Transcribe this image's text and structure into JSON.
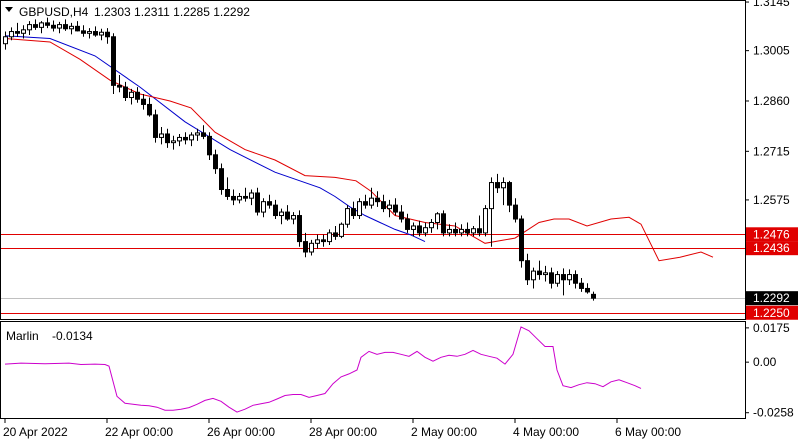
{
  "chart_data": [
    {
      "type": "candlestick",
      "title": "GBPUSD,H4",
      "ohlc_label": "1.2303 1.2311 1.2285 1.2292",
      "ylim": [
        1.2232,
        1.3148
      ],
      "y_ticks": [
        "1.3145",
        "1.3005",
        "1.2860",
        "1.2715",
        "1.2575"
      ],
      "x_ticks": [
        {
          "label": "20 Apr 2022",
          "index": 0
        },
        {
          "label": "22 Apr 00:00",
          "index": 17
        },
        {
          "label": "26 Apr 00:00",
          "index": 34
        },
        {
          "label": "28 Apr 00:00",
          "index": 51
        },
        {
          "label": "2 May 00:00",
          "index": 68
        },
        {
          "label": "4 May 00:00",
          "index": 85
        },
        {
          "label": "6 May 00:00",
          "index": 102
        }
      ],
      "price_lines": [
        {
          "value": 1.2476,
          "label": "1.2476",
          "color": "#e00000"
        },
        {
          "value": 1.2436,
          "label": "1.2436",
          "color": "#e00000"
        },
        {
          "value": 1.225,
          "label": "1.2250",
          "color": "#e00000"
        }
      ],
      "current_price": {
        "value": 1.2292,
        "label": "1.2292"
      },
      "candles": [
        [
          1.3025,
          1.306,
          1.3008,
          1.3045
        ],
        [
          1.3045,
          1.3072,
          1.3035,
          1.306
        ],
        [
          1.306,
          1.3085,
          1.3045,
          1.3055
        ],
        [
          1.3055,
          1.3078,
          1.304,
          1.3065
        ],
        [
          1.3065,
          1.309,
          1.305,
          1.308
        ],
        [
          1.308,
          1.3095,
          1.3065,
          1.3072
        ],
        [
          1.3072,
          1.309,
          1.3055,
          1.3085
        ],
        [
          1.3085,
          1.31,
          1.307,
          1.3078
        ],
        [
          1.3078,
          1.3092,
          1.306,
          1.307
        ],
        [
          1.307,
          1.3088,
          1.3055,
          1.308
        ],
        [
          1.308,
          1.3095,
          1.3062,
          1.3068
        ],
        [
          1.3068,
          1.3085,
          1.3052,
          1.3075
        ],
        [
          1.3075,
          1.309,
          1.306,
          1.3062
        ],
        [
          1.3062,
          1.3078,
          1.3045,
          1.3055
        ],
        [
          1.3055,
          1.307,
          1.304,
          1.306
        ],
        [
          1.306,
          1.3075,
          1.3045,
          1.305
        ],
        [
          1.305,
          1.3068,
          1.3035,
          1.3058
        ],
        [
          1.3058,
          1.307,
          1.3025,
          1.3045
        ],
        [
          1.3045,
          1.3055,
          1.288,
          1.2905
        ],
        [
          1.2905,
          1.2935,
          1.2885,
          1.29
        ],
        [
          1.29,
          1.2915,
          1.286,
          1.287
        ],
        [
          1.287,
          1.2895,
          1.285,
          1.2885
        ],
        [
          1.2885,
          1.29,
          1.2855,
          1.2865
        ],
        [
          1.2865,
          1.288,
          1.2835,
          1.285
        ],
        [
          1.285,
          1.287,
          1.2815,
          1.282
        ],
        [
          1.282,
          1.2835,
          1.274,
          1.2755
        ],
        [
          1.2755,
          1.2785,
          1.2735,
          1.2765
        ],
        [
          1.2765,
          1.278,
          1.2725,
          1.274
        ],
        [
          1.274,
          1.276,
          1.272,
          1.2745
        ],
        [
          1.2745,
          1.2765,
          1.273,
          1.2755
        ],
        [
          1.2755,
          1.277,
          1.2735,
          1.2748
        ],
        [
          1.2748,
          1.277,
          1.273,
          1.2762
        ],
        [
          1.2762,
          1.278,
          1.2745,
          1.2768
        ],
        [
          1.2768,
          1.279,
          1.275,
          1.2758
        ],
        [
          1.2758,
          1.277,
          1.269,
          1.2705
        ],
        [
          1.2705,
          1.272,
          1.265,
          1.2665
        ],
        [
          1.2665,
          1.268,
          1.259,
          1.2605
        ],
        [
          1.2605,
          1.264,
          1.2575,
          1.2585
        ],
        [
          1.2585,
          1.2605,
          1.256,
          1.2575
        ],
        [
          1.2575,
          1.2595,
          1.2565,
          1.2585
        ],
        [
          1.2585,
          1.261,
          1.257,
          1.258
        ],
        [
          1.258,
          1.2605,
          1.256,
          1.2595
        ],
        [
          1.2595,
          1.261,
          1.253,
          1.254
        ],
        [
          1.254,
          1.258,
          1.2525,
          1.257
        ],
        [
          1.257,
          1.259,
          1.255,
          1.256
        ],
        [
          1.256,
          1.2575,
          1.252,
          1.253
        ],
        [
          1.253,
          1.255,
          1.2505,
          1.254
        ],
        [
          1.254,
          1.256,
          1.2515,
          1.252
        ],
        [
          1.252,
          1.254,
          1.2505,
          1.253
        ],
        [
          1.253,
          1.2545,
          1.244,
          1.2455
        ],
        [
          1.2455,
          1.248,
          1.241,
          1.2425
        ],
        [
          1.2425,
          1.246,
          1.2415,
          1.245
        ],
        [
          1.245,
          1.2475,
          1.2435,
          1.246
        ],
        [
          1.246,
          1.2475,
          1.244,
          1.2455
        ],
        [
          1.2455,
          1.249,
          1.2445,
          1.248
        ],
        [
          1.248,
          1.25,
          1.246,
          1.247
        ],
        [
          1.247,
          1.251,
          1.2465,
          1.2505
        ],
        [
          1.2505,
          1.256,
          1.2495,
          1.255
        ],
        [
          1.255,
          1.257,
          1.252,
          1.253
        ],
        [
          1.253,
          1.258,
          1.252,
          1.257
        ],
        [
          1.257,
          1.259,
          1.255,
          1.256
        ],
        [
          1.256,
          1.261,
          1.255,
          1.258
        ],
        [
          1.258,
          1.26,
          1.2555,
          1.257
        ],
        [
          1.257,
          1.259,
          1.254,
          1.255
        ],
        [
          1.255,
          1.2575,
          1.2525,
          1.256
        ],
        [
          1.256,
          1.258,
          1.253,
          1.254
        ],
        [
          1.254,
          1.256,
          1.251,
          1.252
        ],
        [
          1.252,
          1.2535,
          1.248,
          1.249
        ],
        [
          1.249,
          1.251,
          1.247,
          1.25
        ],
        [
          1.25,
          1.2515,
          1.247,
          1.248
        ],
        [
          1.248,
          1.251,
          1.247,
          1.2495
        ],
        [
          1.2495,
          1.252,
          1.248,
          1.251
        ],
        [
          1.251,
          1.254,
          1.249,
          1.2535
        ],
        [
          1.2535,
          1.2545,
          1.247,
          1.248
        ],
        [
          1.248,
          1.2505,
          1.247,
          1.249
        ],
        [
          1.249,
          1.251,
          1.247,
          1.248
        ],
        [
          1.248,
          1.2505,
          1.247,
          1.249
        ],
        [
          1.249,
          1.251,
          1.247,
          1.248
        ],
        [
          1.248,
          1.25,
          1.247,
          1.2492
        ],
        [
          1.2492,
          1.253,
          1.247,
          1.248
        ],
        [
          1.248,
          1.256,
          1.247,
          1.255
        ],
        [
          1.255,
          1.264,
          1.244,
          1.2625
        ],
        [
          1.2625,
          1.265,
          1.2595,
          1.261
        ],
        [
          1.261,
          1.264,
          1.256,
          1.2625
        ],
        [
          1.2625,
          1.263,
          1.254,
          1.256
        ],
        [
          1.256,
          1.258,
          1.251,
          1.252
        ],
        [
          1.252,
          1.253,
          1.238,
          1.24
        ],
        [
          1.24,
          1.242,
          1.233,
          1.2345
        ],
        [
          1.2345,
          1.238,
          1.232,
          1.237
        ],
        [
          1.237,
          1.24,
          1.2345,
          1.236
        ],
        [
          1.236,
          1.2385,
          1.234,
          1.2365
        ],
        [
          1.2365,
          1.238,
          1.232,
          1.2335
        ],
        [
          1.2335,
          1.237,
          1.2325,
          1.236
        ],
        [
          1.236,
          1.2378,
          1.23,
          1.2345
        ],
        [
          1.2345,
          1.2375,
          1.233,
          1.236
        ],
        [
          1.236,
          1.2372,
          1.232,
          1.2335
        ],
        [
          1.2335,
          1.235,
          1.231,
          1.232
        ],
        [
          1.232,
          1.2335,
          1.2305,
          1.231
        ],
        [
          1.2303,
          1.2311,
          1.2285,
          1.2292
        ]
      ],
      "ma_slow": [
        [
          0,
          1.3048
        ],
        [
          15,
          1.304
        ],
        [
          30,
          1.299
        ],
        [
          45,
          1.29
        ],
        [
          60,
          1.28
        ],
        [
          75,
          1.272
        ],
        [
          90,
          1.2655
        ],
        [
          105,
          1.261
        ],
        [
          110,
          1.2585
        ],
        [
          115,
          1.2555
        ],
        [
          120,
          1.253
        ],
        [
          125,
          1.251
        ],
        [
          130,
          1.249
        ],
        [
          135,
          1.2475
        ],
        [
          140,
          1.2455
        ]
      ],
      "ma_fast": [
        [
          0,
          1.304
        ],
        [
          15,
          1.303
        ],
        [
          25,
          1.298
        ],
        [
          35,
          1.292
        ],
        [
          45,
          1.288
        ],
        [
          55,
          1.286
        ],
        [
          62,
          1.284
        ],
        [
          70,
          1.277
        ],
        [
          80,
          1.272
        ],
        [
          90,
          1.269
        ],
        [
          100,
          1.2645
        ],
        [
          110,
          1.264
        ],
        [
          117,
          1.263
        ],
        [
          122,
          1.26
        ],
        [
          130,
          1.253
        ],
        [
          140,
          1.251
        ],
        [
          150,
          1.25
        ],
        [
          160,
          1.245
        ],
        [
          170,
          1.2465
        ],
        [
          178,
          1.251
        ],
        [
          183,
          1.252
        ],
        [
          188,
          1.252
        ],
        [
          194,
          1.25
        ],
        [
          202,
          1.252
        ],
        [
          208,
          1.2525
        ],
        [
          212,
          1.2505
        ],
        [
          218,
          1.24
        ],
        [
          225,
          1.241
        ],
        [
          232,
          1.2425
        ],
        [
          236,
          1.241
        ]
      ]
    },
    {
      "type": "line",
      "indicator": "Marlin",
      "value_label": "-0.0134",
      "ylim": [
        -0.0285,
        0.0205
      ],
      "y_ticks": [
        "0.0175",
        "0.00",
        "-0.0258"
      ],
      "series": [
        {
          "color": "#cc00cc",
          "points": [
            [
              0,
              -0.001
            ],
            [
              8,
              -0.0005
            ],
            [
              20,
              -0.0008
            ],
            [
              32,
              -0.0005
            ],
            [
              38,
              -0.0012
            ],
            [
              45,
              -0.001
            ],
            [
              50,
              -0.0012
            ],
            [
              52,
              -0.002
            ],
            [
              56,
              -0.0175
            ],
            [
              60,
              -0.021
            ],
            [
              64,
              -0.0215
            ],
            [
              68,
              -0.022
            ],
            [
              72,
              -0.0222
            ],
            [
              76,
              -0.023
            ],
            [
              80,
              -0.0245
            ],
            [
              84,
              -0.0245
            ],
            [
              88,
              -0.024
            ],
            [
              92,
              -0.0232
            ],
            [
              96,
              -0.0215
            ],
            [
              100,
              -0.0195
            ],
            [
              104,
              -0.0185
            ],
            [
              108,
              -0.02
            ],
            [
              112,
              -0.023
            ],
            [
              116,
              -0.0255
            ],
            [
              120,
              -0.024
            ],
            [
              124,
              -0.022
            ],
            [
              128,
              -0.0212
            ],
            [
              132,
              -0.0205
            ],
            [
              136,
              -0.0188
            ],
            [
              140,
              -0.017
            ],
            [
              144,
              -0.0165
            ],
            [
              148,
              -0.0165
            ],
            [
              152,
              -0.018
            ],
            [
              156,
              -0.017
            ],
            [
              160,
              -0.016
            ],
            [
              164,
              -0.011
            ],
            [
              168,
              -0.0075
            ],
            [
              172,
              -0.006
            ],
            [
              176,
              -0.004
            ],
            [
              178,
              0.0025
            ],
            [
              182,
              0.0055
            ],
            [
              186,
              0.004
            ],
            [
              190,
              0.005
            ],
            [
              194,
              0.005
            ],
            [
              198,
              0.004
            ],
            [
              202,
              0.003
            ],
            [
              206,
              0.0055
            ],
            [
              210,
              0.0025
            ],
            [
              214,
              0.0005
            ],
            [
              218,
              0.0025
            ],
            [
              222,
              0.0035
            ],
            [
              226,
              0.003
            ],
            [
              230,
              0.004
            ],
            [
              234,
              0.006
            ],
            [
              238,
              0.004
            ],
            [
              242,
              0.003
            ],
            [
              246,
              0.002
            ],
            [
              250,
              -0.001
            ],
            [
              254,
              0.004
            ],
            [
              258,
              0.018
            ],
            [
              262,
              0.016
            ],
            [
              266,
              0.012
            ],
            [
              270,
              0.008
            ],
            [
              274,
              0.008
            ],
            [
              276,
              -0.004
            ],
            [
              279,
              -0.012
            ],
            [
              283,
              -0.013
            ],
            [
              287,
              -0.0115
            ],
            [
              291,
              -0.0105
            ],
            [
              295,
              -0.011
            ],
            [
              299,
              -0.0125
            ],
            [
              303,
              -0.01
            ],
            [
              307,
              -0.009
            ],
            [
              311,
              -0.0105
            ],
            [
              315,
              -0.012
            ],
            [
              318,
              -0.0134
            ]
          ]
        }
      ]
    }
  ],
  "colors": {
    "bull_body": "#ffffff",
    "bear_body": "#000000",
    "ma_fast": "#e00000",
    "ma_slow": "#0000cc",
    "price_line": "#e00000",
    "oscillator": "#cc00cc",
    "axis": "#000000",
    "grid": "none"
  },
  "icons": {
    "menu": "triangle-down-icon"
  }
}
